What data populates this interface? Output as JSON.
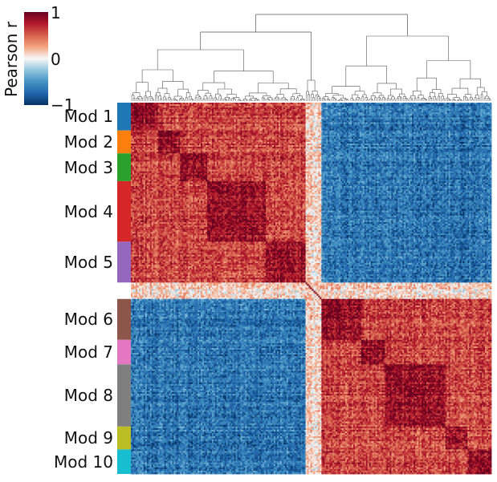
{
  "chart_data": {
    "type": "heatmap",
    "title": "",
    "colorbar": {
      "label": "Pearson r",
      "ticks": [
        "1",
        "0",
        "−1"
      ],
      "range": [
        -1,
        1
      ],
      "colormap": "RdBu_r",
      "colors": [
        "#053061",
        "#2166ac",
        "#4393c3",
        "#92c5de",
        "#f7f7f7",
        "#f4a582",
        "#d6604d",
        "#b2182b",
        "#67001f"
      ]
    },
    "modules": [
      {
        "label": "Mod 1",
        "color": "#1f77b4",
        "size": 17,
        "cluster": "A"
      },
      {
        "label": "Mod 2",
        "color": "#ff7f0e",
        "size": 14,
        "cluster": "A"
      },
      {
        "label": "Mod 3",
        "color": "#2ca02c",
        "size": 17,
        "cluster": "A"
      },
      {
        "label": "Mod 4",
        "color": "#d62728",
        "size": 37,
        "cluster": "A"
      },
      {
        "label": "Mod 5",
        "color": "#9467bd",
        "size": 25,
        "cluster": "A"
      },
      {
        "label": "",
        "color": "#ffffff",
        "size": 10,
        "cluster": "U"
      },
      {
        "label": "Mod 6",
        "color": "#8c564b",
        "size": 25,
        "cluster": "B"
      },
      {
        "label": "Mod 7",
        "color": "#e377c2",
        "size": 15,
        "cluster": "B"
      },
      {
        "label": "Mod 8",
        "color": "#7f7f7f",
        "size": 38,
        "cluster": "B"
      },
      {
        "label": "Mod 9",
        "color": "#bcbd22",
        "size": 14,
        "cluster": "B"
      },
      {
        "label": "Mod 10",
        "color": "#17becf",
        "size": 15,
        "cluster": "B"
      }
    ],
    "block_correlation": {
      "same_module": 0.85,
      "same_cluster": 0.6,
      "opposite_cluster": -0.65,
      "unassigned": 0.1
    }
  }
}
